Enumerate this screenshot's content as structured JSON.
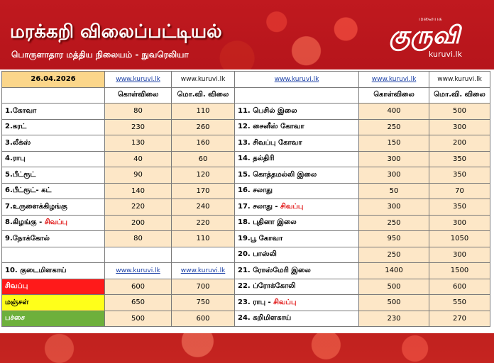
{
  "header": {
    "title": "மரக்கறி விலைப்பட்டியல்",
    "subtitle": "பொருளாதார மத்திய நிலையம் - நுவரெலியா",
    "logo_small": "மலையக",
    "logo_glyph": "குருவி",
    "logo_site": "kuruvi.lk"
  },
  "table": {
    "date": "26.04.2026",
    "web": "www.kuruvi.lk",
    "col_wholesale": "கொள்விலை",
    "col_retail": "மொ.வி. விலை",
    "left": [
      {
        "label": "1.கோவா",
        "w": "80",
        "r": "110"
      },
      {
        "label": "2.கரட்",
        "w": "230",
        "r": "260"
      },
      {
        "label": "3.லீக்ஸ்",
        "w": "130",
        "r": "160"
      },
      {
        "label": "4.ராபு",
        "w": "40",
        "r": "60"
      },
      {
        "label": "5.பீட்ரூட்",
        "w": "90",
        "r": "120"
      },
      {
        "label": "6.பீட்ரூட்- கட்",
        "w": "140",
        "r": "170"
      },
      {
        "label": "7.உருளைக்கிழங்கு",
        "w": "220",
        "r": "240"
      },
      {
        "label": "8.கிழங்கு - ",
        "red": "சிவப்பு",
        "w": "200",
        "r": "220"
      },
      {
        "label": "9.நோக்கோல்",
        "w": "80",
        "r": "110"
      }
    ],
    "capsicum": "10. குடைமிளகாய்",
    "capsicum_rows": [
      {
        "label": "சிவப்பு",
        "w": "600",
        "r": "700"
      },
      {
        "label": "மஞ்சள்",
        "w": "650",
        "r": "750"
      },
      {
        "label": "பச்சை",
        "w": "500",
        "r": "600"
      }
    ],
    "right": [
      {
        "label": "11. பெசில் இலை",
        "w": "400",
        "r": "500"
      },
      {
        "label": "12. சைனீஸ் கோவா",
        "w": "250",
        "r": "300"
      },
      {
        "label": "13. சிவப்பு கோவா",
        "w": "150",
        "r": "200"
      },
      {
        "label": "14. தல்திரி",
        "w": "300",
        "r": "350"
      },
      {
        "label": "15. கொத்தமல்லி இலை",
        "w": "300",
        "r": "350"
      },
      {
        "label": "16. சலாது",
        "w": "50",
        "r": "70"
      },
      {
        "label": "17. சலாது - ",
        "red": "சிவப்பு",
        "w": "300",
        "r": "350"
      },
      {
        "label": "18. புதினா இலை",
        "w": "250",
        "r": "300"
      },
      {
        "label": "19.பூ கோவா",
        "w": "950",
        "r": "1050"
      },
      {
        "label": "20. பாஸ்லி",
        "w": "250",
        "r": "300"
      },
      {
        "label": "21. ரோஸ்மேரி இலை",
        "w": "1400",
        "r": "1500"
      },
      {
        "label": "22. ப்ரோக்கோலி",
        "w": "500",
        "r": "600"
      },
      {
        "label": "23. ராபு - ",
        "red": "சிவப்பு",
        "w": "500",
        "r": "550"
      },
      {
        "label": "24. கறிமிளகாய்",
        "w": "230",
        "r": "270"
      }
    ]
  }
}
